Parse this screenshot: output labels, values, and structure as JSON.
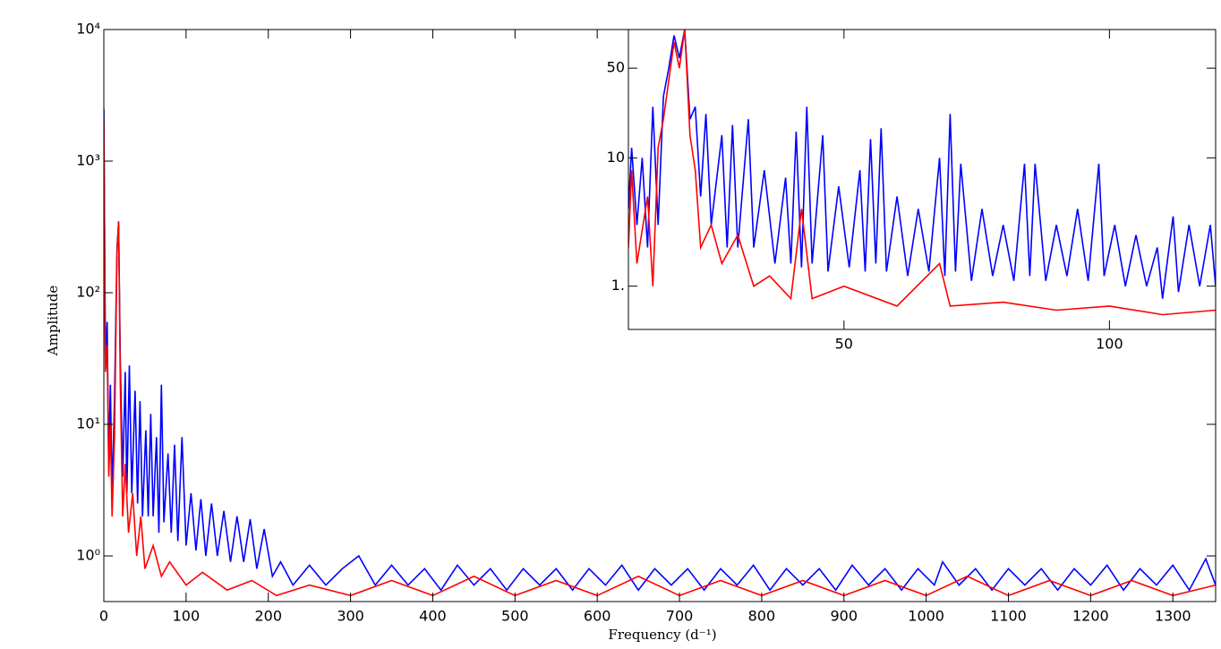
{
  "chart_data": [
    {
      "type": "line",
      "log_y": true,
      "x_label": "Frequency (d⁻¹)",
      "y_label": "Amplitude",
      "xlim": [
        0,
        1352
      ],
      "ylim": [
        0.45,
        10000
      ],
      "xticks": [
        0,
        100,
        200,
        300,
        400,
        500,
        600,
        700,
        800,
        900,
        1000,
        1100,
        1200,
        1300
      ],
      "yticks": [
        {
          "value": 1,
          "label": "10⁰"
        },
        {
          "value": 10,
          "label": "10¹"
        },
        {
          "value": 100,
          "label": "10²"
        },
        {
          "value": 1000,
          "label": "10³"
        },
        {
          "value": 10000,
          "label": "10⁴"
        }
      ],
      "series": [
        {
          "color": "#0000ff",
          "x": [
            0,
            2,
            4,
            6,
            8,
            10,
            13,
            16,
            18,
            20,
            23,
            26,
            28,
            31,
            34,
            38,
            41,
            44,
            47,
            51,
            54,
            57,
            60,
            64,
            67,
            70,
            73,
            78,
            82,
            86,
            90,
            95,
            100,
            106,
            112,
            118,
            124,
            131,
            138,
            146,
            154,
            162,
            170,
            178,
            186,
            195,
            205,
            215,
            230,
            250,
            270,
            290,
            310,
            330,
            350,
            370,
            390,
            410,
            430,
            450,
            470,
            490,
            510,
            530,
            550,
            570,
            590,
            610,
            630,
            650,
            670,
            690,
            710,
            730,
            750,
            770,
            790,
            810,
            830,
            850,
            870,
            890,
            910,
            930,
            950,
            970,
            990,
            1010,
            1020,
            1040,
            1060,
            1080,
            1100,
            1120,
            1140,
            1160,
            1180,
            1200,
            1220,
            1240,
            1260,
            1280,
            1300,
            1320,
            1340,
            1352
          ],
          "values": [
            2500,
            30,
            60,
            5,
            20,
            3,
            15,
            220,
            340,
            30,
            4,
            25,
            3,
            28,
            3,
            18,
            2.5,
            15,
            2,
            9,
            2,
            12,
            2,
            8,
            1.5,
            20,
            1.8,
            6,
            1.5,
            7,
            1.3,
            8,
            1.2,
            3,
            1.1,
            2.7,
            1,
            2.5,
            1,
            2.2,
            0.9,
            2,
            0.9,
            1.9,
            0.8,
            1.6,
            0.7,
            0.9,
            0.6,
            0.85,
            0.6,
            0.8,
            1.0,
            0.6,
            0.85,
            0.6,
            0.8,
            0.55,
            0.85,
            0.6,
            0.8,
            0.55,
            0.8,
            0.6,
            0.8,
            0.55,
            0.8,
            0.6,
            0.85,
            0.55,
            0.8,
            0.6,
            0.8,
            0.55,
            0.8,
            0.6,
            0.85,
            0.55,
            0.8,
            0.6,
            0.8,
            0.55,
            0.85,
            0.6,
            0.8,
            0.55,
            0.8,
            0.6,
            0.9,
            0.6,
            0.8,
            0.55,
            0.8,
            0.6,
            0.8,
            0.55,
            0.8,
            0.6,
            0.85,
            0.55,
            0.8,
            0.6,
            0.85,
            0.55,
            0.95,
            0.6
          ]
        },
        {
          "color": "#ff0000",
          "x": [
            0,
            2,
            4,
            6,
            8,
            10,
            13,
            16,
            18,
            20,
            23,
            26,
            30,
            35,
            40,
            45,
            50,
            60,
            70,
            80,
            100,
            120,
            150,
            180,
            210,
            250,
            300,
            350,
            400,
            450,
            500,
            550,
            600,
            650,
            700,
            750,
            800,
            850,
            900,
            950,
            1000,
            1050,
            1100,
            1150,
            1200,
            1250,
            1300,
            1352
          ],
          "values": [
            2000,
            25,
            40,
            4,
            10,
            2,
            8,
            200,
            350,
            20,
            2,
            5,
            1.5,
            3,
            1,
            2,
            0.8,
            1.2,
            0.7,
            0.9,
            0.6,
            0.75,
            0.55,
            0.65,
            0.5,
            0.6,
            0.5,
            0.65,
            0.5,
            0.7,
            0.5,
            0.65,
            0.5,
            0.7,
            0.5,
            0.65,
            0.5,
            0.65,
            0.5,
            0.65,
            0.5,
            0.7,
            0.5,
            0.65,
            0.5,
            0.65,
            0.5,
            0.6
          ]
        }
      ]
    },
    {
      "type": "line",
      "log_y": true,
      "xlim": [
        9.4,
        120
      ],
      "ylim": [
        0.46,
        100
      ],
      "xticks": [
        50,
        100
      ],
      "yticks": [
        {
          "value": 1,
          "label": "1."
        },
        10,
        50
      ],
      "series": [
        {
          "color": "#0000ff",
          "x": [
            9.4,
            10,
            11,
            12,
            13,
            14,
            15,
            16,
            17,
            18,
            19,
            20,
            21,
            22,
            23,
            24,
            25,
            27,
            28,
            29,
            30,
            32,
            33,
            35,
            37,
            39,
            40,
            41,
            42,
            43,
            44,
            46,
            47,
            49,
            51,
            53,
            54,
            55,
            56,
            57,
            58,
            60,
            62,
            64,
            66,
            68,
            69,
            70,
            71,
            72,
            74,
            76,
            78,
            80,
            82,
            84,
            85,
            86,
            88,
            90,
            92,
            94,
            96,
            98,
            99,
            101,
            103,
            105,
            107,
            109,
            110,
            112,
            113,
            115,
            117,
            119,
            120
          ],
          "values": [
            4,
            12,
            3,
            10,
            2,
            25,
            3,
            30,
            50,
            90,
            60,
            100,
            20,
            25,
            5,
            22,
            3,
            15,
            2,
            18,
            2,
            20,
            2,
            8,
            1.5,
            7,
            1.5,
            16,
            1.4,
            25,
            1.5,
            15,
            1.3,
            6,
            1.4,
            8,
            1.3,
            14,
            1.5,
            17,
            1.3,
            5,
            1.2,
            4,
            1.3,
            10,
            1.2,
            22,
            1.3,
            9,
            1.1,
            4,
            1.2,
            3,
            1.1,
            9,
            1.2,
            9,
            1.1,
            3,
            1.2,
            4,
            1.1,
            9,
            1.2,
            3,
            1,
            2.5,
            1,
            2,
            0.8,
            3.5,
            0.9,
            3,
            1,
            3,
            1
          ]
        },
        {
          "color": "#ff0000",
          "x": [
            9.4,
            10,
            11,
            13,
            14,
            15,
            16,
            17,
            18,
            19,
            20,
            21,
            22,
            23,
            25,
            27,
            30,
            33,
            36,
            40,
            42,
            44,
            50,
            60,
            68,
            70,
            80,
            90,
            100,
            110,
            120
          ],
          "values": [
            2,
            8,
            1.5,
            5,
            1,
            12,
            20,
            40,
            80,
            50,
            100,
            15,
            8,
            2,
            3,
            1.5,
            2.5,
            1,
            1.2,
            0.8,
            4,
            0.8,
            1,
            0.7,
            1.5,
            0.7,
            0.75,
            0.65,
            0.7,
            0.6,
            0.65
          ]
        }
      ]
    }
  ]
}
